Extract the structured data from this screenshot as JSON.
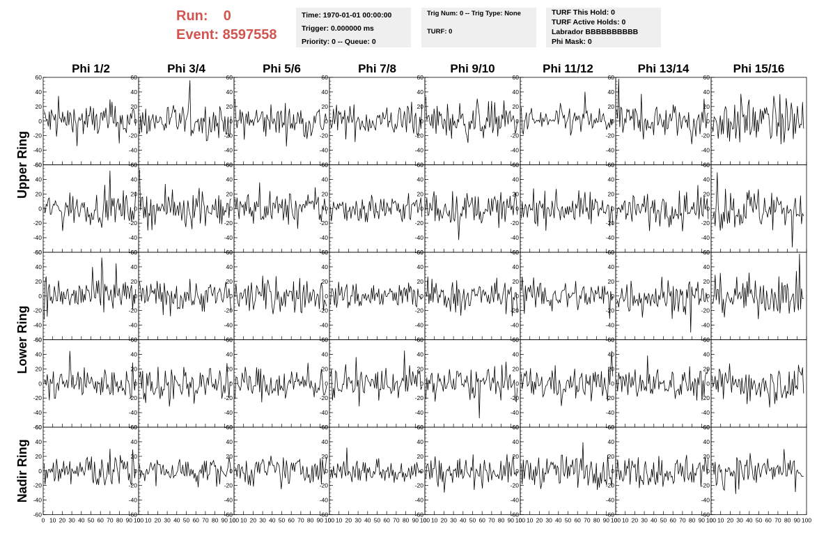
{
  "header": {
    "run_label": "Run:    0",
    "event_label": "Event: 8597558",
    "accent_color": "#d1544e",
    "time_box": {
      "time": "Time: 1970-01-01 00:00:00",
      "trigger": "Trigger: 0.000000 ms",
      "priority": "Priority: 0 -- Queue: 0"
    },
    "trig_box": {
      "trig": "Trig Num: 0 -- Trig Type: None",
      "turf": "TURF: 0"
    },
    "turf_box": {
      "hold": "TURF This Hold: 0",
      "active": "TURF Active Holds: 0",
      "labrador": "Labrador BBBBBBBBBB",
      "phi_mask": "Phi Mask: 0"
    },
    "panel_bg": "#efefef"
  },
  "chart_data": {
    "type": "line",
    "columns": [
      "Phi 1/2",
      "Phi 3/4",
      "Phi 5/6",
      "Phi 7/8",
      "Phi 9/10",
      "Phi 11/12",
      "Phi 13/14",
      "Phi 15/16"
    ],
    "rows": [
      "Upper Ring",
      "Lower Ring",
      "Nadir Ring"
    ],
    "panel_rows": 5,
    "xlim": [
      0,
      100
    ],
    "ylim": [
      -60,
      60
    ],
    "x_ticks": [
      0,
      10,
      20,
      30,
      40,
      50,
      60,
      70,
      80,
      90,
      100
    ],
    "y_ticks": [
      -60,
      -40,
      -20,
      0,
      20,
      40,
      60
    ],
    "samples_per_trace": 90,
    "amplitude": [
      [
        13,
        12,
        12,
        11,
        13,
        10,
        12,
        16
      ],
      [
        11,
        12,
        11,
        10,
        11,
        11,
        11,
        15
      ],
      [
        13,
        11,
        12,
        10,
        11,
        11,
        13,
        13
      ],
      [
        11,
        13,
        11,
        12,
        11,
        11,
        11,
        13
      ],
      [
        13,
        9,
        10,
        9,
        10,
        11,
        11,
        11
      ]
    ],
    "line_color": "#000000"
  }
}
